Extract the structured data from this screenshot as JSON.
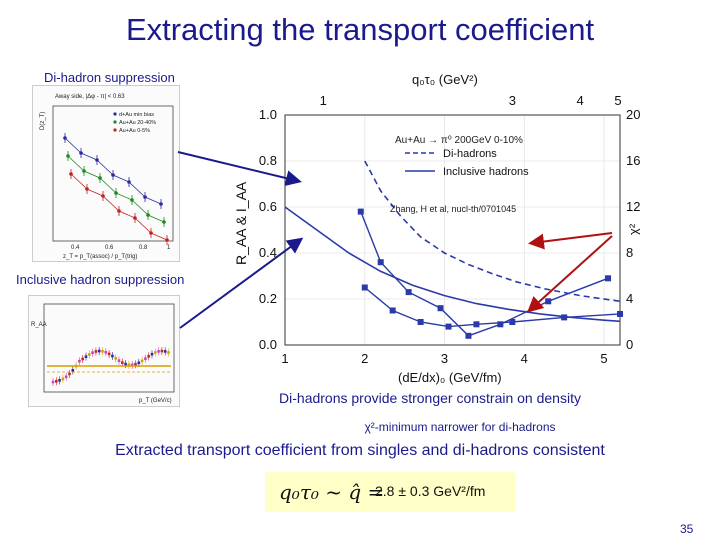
{
  "slide": {
    "title": "Extracting the transport coefficient",
    "dihadron_label": "Di-hadron suppression",
    "inclusive_label": "Inclusive hadron suppression",
    "note1": "Di-hadrons provide stronger constrain on density",
    "note2": "χ²-minimum narrower for di-hadrons",
    "conclusion": "Extracted transport coefficient from singles and di-hadrons consistent",
    "formula_math": "q₀τ₀ ~ q̂ =",
    "formula_value": "2.8 ± 0.3 GeV²/fm",
    "page_number": "35"
  },
  "dihadron_thumb": {
    "legend_title": "Away side, |Δφ - π| < 0.63",
    "legend": [
      "d+Au min bias",
      "Au+Au 20-40%",
      "Au+Au 0-5%"
    ],
    "ylabel": "D(z_T)",
    "xlabel": "z_T = p_T(assoc) / p_T(trig)",
    "xticks": [
      "0.4",
      "0.6",
      "0.8",
      "1"
    ],
    "colors": [
      "#2a2aa0",
      "#1a8a1a",
      "#c02020"
    ]
  },
  "inclusive_thumb": {
    "ylabel": "R_AA",
    "xlabel": "p_T (GeV/c)",
    "colors": [
      "#d040c0",
      "#cc2222",
      "#2a2aa0",
      "#d9a000"
    ]
  },
  "chart_data": {
    "type": "line",
    "annotation_system": "Au+Au → π⁰  200GeV  0-10%",
    "annotation_ref": "Zhang, H et al, nucl-th/0701045",
    "xlabel": "(dE/dx)₀ (GeV/fm)",
    "xlabel_top": "q₀τ₀ (GeV²)",
    "ylabel": "R_AA & I_AA",
    "ylabel_right": "χ²",
    "xlim": [
      1,
      5.2
    ],
    "ylim": [
      0,
      1.0
    ],
    "xticks": [
      1,
      2,
      3,
      4,
      5
    ],
    "yticks": [
      0.0,
      0.2,
      0.4,
      0.6,
      0.8,
      1.0
    ],
    "top_ticks": [
      {
        "x": 1.48,
        "label": "1"
      },
      {
        "x": 3.85,
        "label": "3"
      },
      {
        "x": 4.7,
        "label": "4"
      },
      {
        "x": 5.55,
        "label": "5"
      }
    ],
    "right_ticks": [
      {
        "y": 0.0,
        "label": "0"
      },
      {
        "y": 0.2,
        "label": "4"
      },
      {
        "y": 0.4,
        "label": "8"
      },
      {
        "y": 0.6,
        "label": "12"
      },
      {
        "y": 0.8,
        "label": "16"
      },
      {
        "y": 1.0,
        "label": "20"
      }
    ],
    "series": [
      {
        "name": "Di-hadrons",
        "style": "dashed",
        "color": "#2a3aa8",
        "x": [
          2.0,
          2.2,
          2.45,
          2.7,
          3.0,
          3.3,
          3.6,
          3.9,
          4.25,
          4.7,
          5.2
        ],
        "y": [
          0.8,
          0.67,
          0.56,
          0.47,
          0.4,
          0.35,
          0.31,
          0.275,
          0.245,
          0.215,
          0.19
        ]
      },
      {
        "name": "Inclusive hadrons",
        "style": "solid",
        "color": "#2a3aa8",
        "x": [
          1.0,
          1.4,
          1.8,
          2.2,
          2.6,
          3.0,
          3.4,
          3.8,
          4.2,
          4.6,
          5.0,
          5.2
        ],
        "y": [
          0.6,
          0.5,
          0.4,
          0.32,
          0.26,
          0.215,
          0.18,
          0.155,
          0.135,
          0.12,
          0.108,
          0.103
        ]
      },
      {
        "name": "",
        "style": "markers",
        "color": "#2a3aa8",
        "axis": "right",
        "x": [
          2.0,
          2.35,
          2.7,
          3.05,
          3.4,
          3.85,
          4.5,
          5.2
        ],
        "y": [
          0.25,
          0.15,
          0.1,
          0.08,
          0.09,
          0.1,
          0.12,
          0.135
        ]
      },
      {
        "name": "",
        "style": "markers",
        "color": "#2a3aa8",
        "axis": "right",
        "x": [
          1.95,
          2.2,
          2.55,
          2.95,
          3.3,
          3.7,
          4.3,
          5.05
        ],
        "y": [
          0.58,
          0.36,
          0.23,
          0.16,
          0.04,
          0.09,
          0.19,
          0.29
        ]
      }
    ]
  }
}
